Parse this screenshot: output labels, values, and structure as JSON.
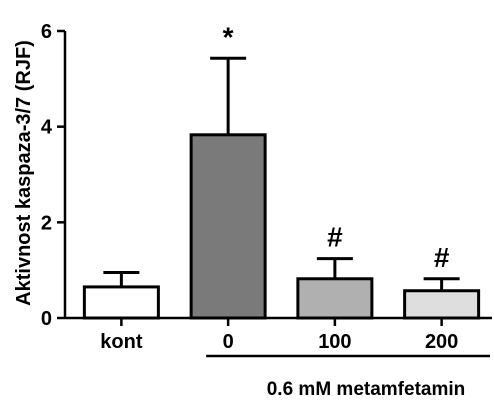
{
  "chart_data": {
    "type": "bar",
    "categories": [
      "kont",
      "0",
      "100",
      "200"
    ],
    "values": [
      0.65,
      3.83,
      0.82,
      0.57
    ],
    "errors": [
      0.3,
      1.6,
      0.42,
      0.25
    ],
    "significance": [
      "",
      "*",
      "#",
      "#"
    ],
    "bar_colors": [
      "#ffffff",
      "#7a7a7a",
      "#b0b0b0",
      "#dedede"
    ],
    "ylabel": "Aktivnost kaspaza-3/7 (RJF)",
    "xlabel": "",
    "ylim": [
      0,
      6
    ],
    "yticks": [
      0,
      2,
      4,
      6
    ],
    "group_label": "0.6 mM metamfetamin",
    "grid": false
  }
}
